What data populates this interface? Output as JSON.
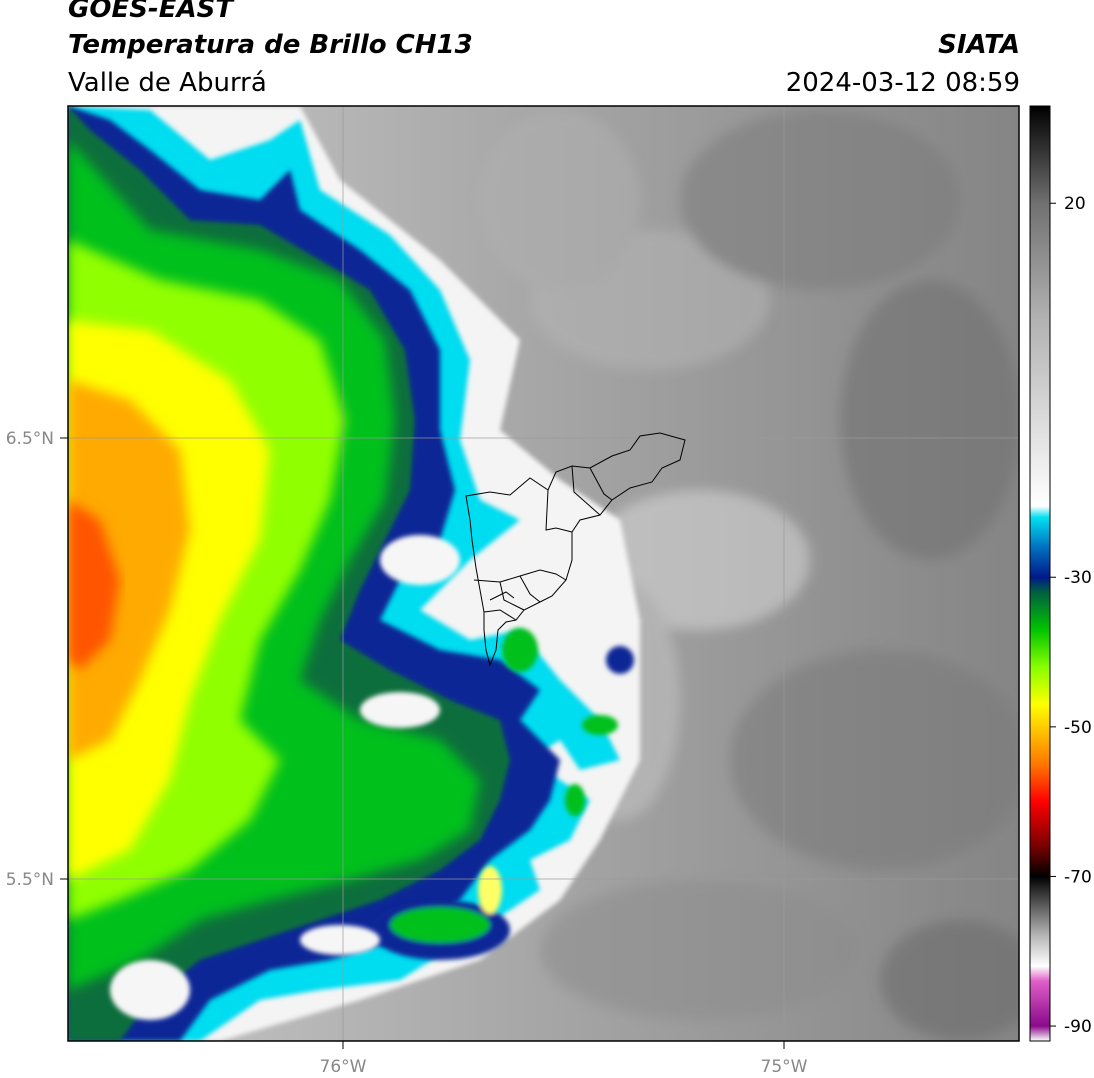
{
  "header": {
    "satellite": "GOES-EAST",
    "product": "Temperatura de Brillo CH13",
    "region": "Valle de Aburrá",
    "organization": "SIATA",
    "timestamp": "2024-03-12 08:59"
  },
  "map": {
    "lat_ticks": [
      {
        "value": 6.5,
        "label": "6.5°N"
      },
      {
        "value": 5.5,
        "label": "5.5°N"
      }
    ],
    "lon_ticks": [
      {
        "value": -76,
        "label": "76°W"
      },
      {
        "value": -75,
        "label": "75°W"
      }
    ],
    "extent": {
      "lon_min": -76.62,
      "lon_max": -74.47,
      "lat_min": 5.13,
      "lat_max": 7.25
    },
    "gridlines": true,
    "colors": {
      "cold_warm_palette": [
        "#00e0f0",
        "#0055aa",
        "#00198c",
        "#006c3a",
        "#00c41c",
        "#7cff00",
        "#ffff00",
        "#ffa500",
        "#ff4400",
        "#ff0000"
      ],
      "gray_background": "#8a8a8a",
      "boundary_line": "#000000"
    }
  },
  "colorbar": {
    "ticks": [
      {
        "value": 20,
        "label": "20"
      },
      {
        "value": -30,
        "label": "-30"
      },
      {
        "value": -50,
        "label": "-50"
      },
      {
        "value": -70,
        "label": "-70"
      },
      {
        "value": -90,
        "label": "-90"
      }
    ],
    "range": [
      -92,
      33
    ],
    "stops": [
      {
        "value": -92,
        "color": "#ffffff"
      },
      {
        "value": -90,
        "color": "#8a0a8a"
      },
      {
        "value": -84,
        "color": "#e05ec8"
      },
      {
        "value": -82,
        "color": "#ffffff"
      },
      {
        "value": -78,
        "color": "#b8b8b8"
      },
      {
        "value": -72,
        "color": "#303030"
      },
      {
        "value": -70,
        "color": "#000000"
      },
      {
        "value": -66,
        "color": "#780000"
      },
      {
        "value": -60,
        "color": "#ff0000"
      },
      {
        "value": -55,
        "color": "#ff7700"
      },
      {
        "value": -50,
        "color": "#ffcc00"
      },
      {
        "value": -47,
        "color": "#ffff00"
      },
      {
        "value": -42,
        "color": "#88ff00"
      },
      {
        "value": -37,
        "color": "#00c400"
      },
      {
        "value": -32,
        "color": "#006040"
      },
      {
        "value": -30,
        "color": "#001a8a"
      },
      {
        "value": -26,
        "color": "#0070c0"
      },
      {
        "value": -22,
        "color": "#00e0f0"
      },
      {
        "value": -20.5,
        "color": "#ffffff"
      },
      {
        "value": 5,
        "color": "#b0b0b0"
      },
      {
        "value": 20,
        "color": "#707070"
      },
      {
        "value": 33,
        "color": "#000000"
      }
    ]
  }
}
